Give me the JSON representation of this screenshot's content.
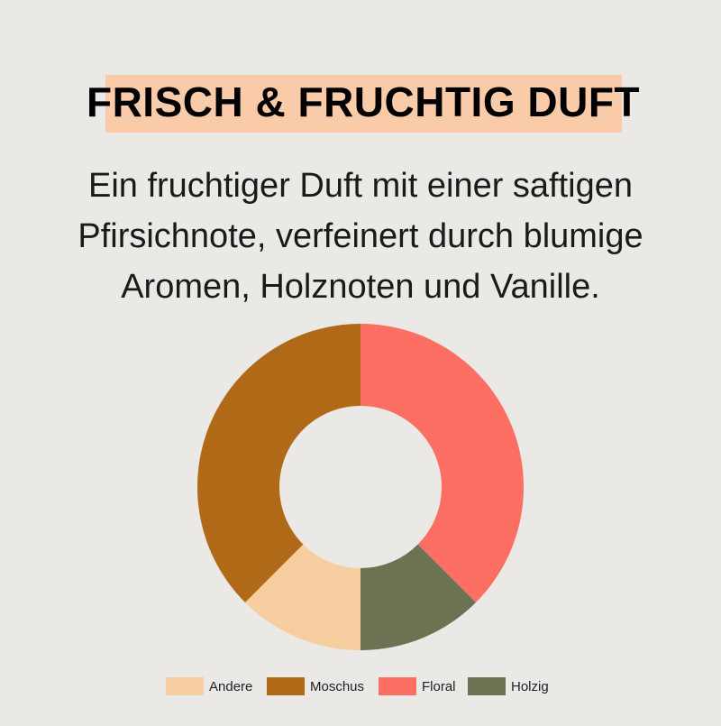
{
  "header": {
    "title": "FRISCH & FRUCHTIG DUFT",
    "description": [
      "Ein fruchtiger Duft mit einer saftigen",
      "Pfirsichnote, verfeinert durch blumige",
      "Aromen, Holznoten und Vanille."
    ]
  },
  "chart_data": {
    "type": "donut",
    "categories": [
      "Andere",
      "Moschus",
      "Floral",
      "Holzig"
    ],
    "values": [
      12.5,
      37.5,
      37.5,
      12.5
    ],
    "colors": [
      "#f7cea0",
      "#b06a17",
      "#fd6f62",
      "#6b7352"
    ],
    "legend": "bottom"
  }
}
